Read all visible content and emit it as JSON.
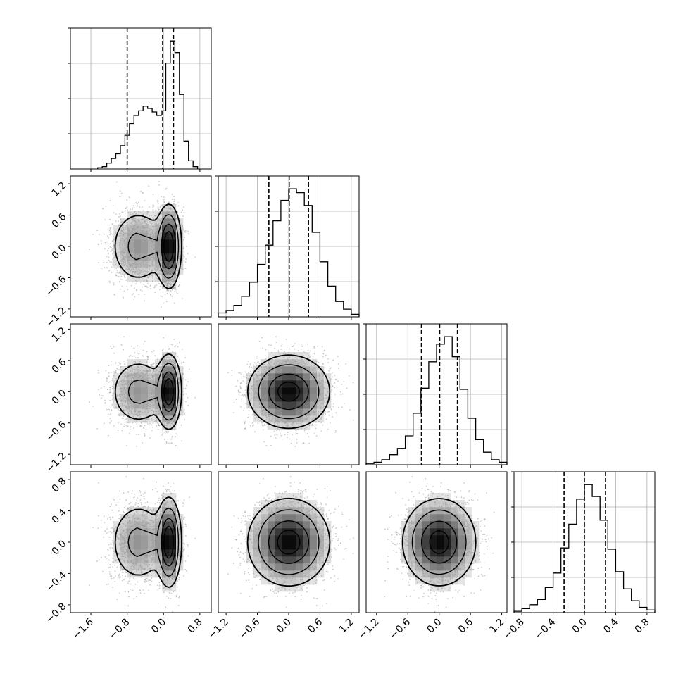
{
  "chart_data": {
    "type": "corner",
    "grid": true,
    "n_params": 4,
    "tick_labels": {
      "x": [
        [
          "−1.6",
          "−0.8",
          "0.0",
          "0.8"
        ],
        [
          "−1.2",
          "−0.6",
          "0.0",
          "0.6",
          "1.2"
        ],
        [
          "−1.2",
          "−0.6",
          "0.0",
          "0.6",
          "1.2"
        ],
        [
          "−0.8",
          "−0.4",
          "0.0",
          "0.4",
          "0.8"
        ]
      ],
      "y_rows": [
        [],
        [
          "1.2",
          "0.6",
          "0.0",
          "−0.6",
          "−1.2"
        ],
        [
          "1.2",
          "0.6",
          "0.0",
          "−0.6",
          "−1.2"
        ],
        [
          "0.8",
          "0.4",
          "0.0",
          "−0.4",
          "−0.8"
        ]
      ]
    },
    "params": [
      {
        "range": [
          -2.05,
          1.05
        ],
        "ticks": [
          -1.6,
          -0.8,
          0.0,
          0.8
        ],
        "quantiles": [
          -0.8,
          -0.02,
          0.22
        ],
        "hist": {
          "edges": [
            -1.45,
            -1.35,
            -1.25,
            -1.15,
            -1.05,
            -0.95,
            -0.85,
            -0.75,
            -0.65,
            -0.55,
            -0.45,
            -0.35,
            -0.25,
            -0.15,
            -0.05,
            0.05,
            0.15,
            0.25,
            0.35,
            0.45,
            0.55,
            0.65,
            0.75
          ],
          "counts": [
            0.01,
            0.02,
            0.05,
            0.09,
            0.13,
            0.2,
            0.29,
            0.39,
            0.46,
            0.5,
            0.54,
            0.52,
            0.49,
            0.46,
            0.5,
            0.91,
            1.1,
            1.0,
            0.64,
            0.24,
            0.07,
            0.02
          ]
        }
      },
      {
        "range": [
          -1.35,
          1.35
        ],
        "ticks": [
          -1.2,
          -0.6,
          0.0,
          0.6,
          1.2
        ],
        "quantiles": [
          -0.38,
          0.01,
          0.38
        ],
        "hist": {
          "edges": [
            -1.35,
            -1.2,
            -1.05,
            -0.9,
            -0.75,
            -0.6,
            -0.45,
            -0.3,
            -0.15,
            0.0,
            0.15,
            0.3,
            0.45,
            0.6,
            0.75,
            0.9,
            1.05,
            1.2,
            1.35
          ],
          "counts": [
            0.03,
            0.05,
            0.09,
            0.16,
            0.27,
            0.41,
            0.56,
            0.75,
            0.91,
            1.0,
            0.97,
            0.87,
            0.66,
            0.43,
            0.24,
            0.12,
            0.06,
            0.02
          ]
        }
      },
      {
        "range": [
          -1.4,
          1.3
        ],
        "ticks": [
          -1.2,
          -0.6,
          0.0,
          0.6,
          1.2
        ],
        "quantiles": [
          -0.34,
          0.01,
          0.35
        ],
        "hist": {
          "edges": [
            -1.4,
            -1.25,
            -1.1,
            -0.95,
            -0.8,
            -0.65,
            -0.5,
            -0.35,
            -0.2,
            -0.05,
            0.1,
            0.25,
            0.4,
            0.55,
            0.7,
            0.85,
            1.0,
            1.15,
            1.3
          ],
          "counts": [
            0.01,
            0.02,
            0.04,
            0.08,
            0.13,
            0.23,
            0.41,
            0.61,
            0.82,
            0.96,
            1.02,
            0.86,
            0.6,
            0.37,
            0.2,
            0.1,
            0.04,
            0.02
          ]
        }
      },
      {
        "range": [
          -0.9,
          0.9
        ],
        "ticks": [
          -0.8,
          -0.4,
          0.0,
          0.4,
          0.8
        ],
        "quantiles": [
          -0.26,
          0.0,
          0.27
        ],
        "hist": {
          "edges": [
            -0.9,
            -0.8,
            -0.7,
            -0.6,
            -0.5,
            -0.4,
            -0.3,
            -0.2,
            -0.1,
            0.0,
            0.1,
            0.2,
            0.3,
            0.4,
            0.5,
            0.6,
            0.7,
            0.8,
            0.9
          ],
          "counts": [
            0.01,
            0.03,
            0.06,
            0.1,
            0.19,
            0.3,
            0.49,
            0.67,
            0.86,
            0.97,
            0.88,
            0.7,
            0.48,
            0.31,
            0.18,
            0.09,
            0.04,
            0.02
          ]
        }
      }
    ]
  }
}
